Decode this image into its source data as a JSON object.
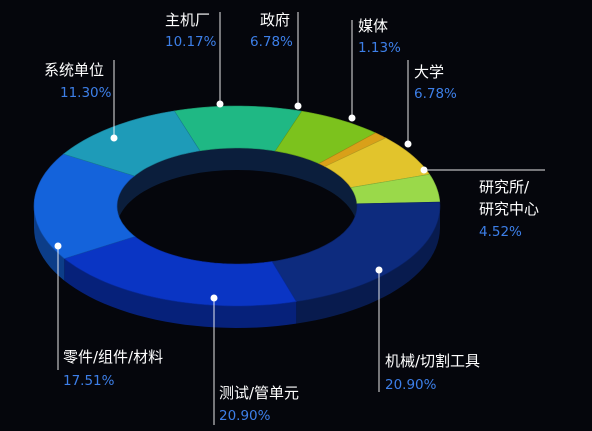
{
  "chart_data": {
    "type": "pie",
    "variant": "3d-donut",
    "title": "",
    "legend": "none",
    "slices": [
      {
        "label": "主机厂",
        "percent_label": "10.17%",
        "value": 10.17,
        "color": "#1fb884"
      },
      {
        "label": "政府",
        "percent_label": "6.78%",
        "value": 6.78,
        "color": "#7cc21d"
      },
      {
        "label": "媒体",
        "percent_label": "1.13%",
        "value": 1.13,
        "color": "#d9a019"
      },
      {
        "label": "大学",
        "percent_label": "6.78%",
        "value": 6.78,
        "color": "#e2c42c"
      },
      {
        "label": "研究所/",
        "label_line2": "研究中心",
        "percent_label": "4.52%",
        "value": 4.52,
        "color": "#9ad94a"
      },
      {
        "label": "机械/切割工具",
        "percent_label": "20.90%",
        "value": 20.9,
        "color": "#0d2b7e"
      },
      {
        "label": "测试/管单元",
        "percent_label": "20.90%",
        "value": 20.9,
        "color": "#0a35c4"
      },
      {
        "label": "零件/组件/材料",
        "percent_label": "17.51%",
        "value": 17.51,
        "color": "#1463db"
      },
      {
        "label": "系统单位",
        "percent_label": "11.30%",
        "value": 11.3,
        "color": "#1e9bb8"
      }
    ]
  }
}
